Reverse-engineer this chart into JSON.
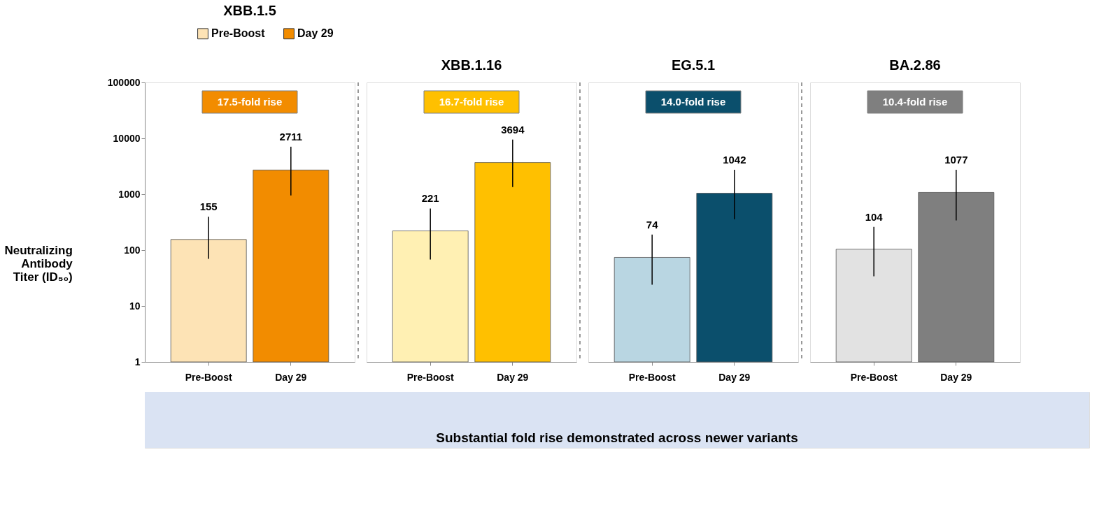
{
  "chart_data": [
    {
      "type": "bar",
      "title": "XBB.1.5",
      "ylabel": "Neutralizing Antibody Titer (ID₅₀)",
      "categories": [
        "Pre-Boost",
        "Day 29"
      ],
      "series": [
        {
          "name": "Pre-Boost",
          "color": "#fde3b5",
          "values": [
            155,
            null
          ],
          "errors": [
            [
              70,
              395
            ],
            null
          ]
        },
        {
          "name": "Day 29",
          "color": "#f28c00",
          "values": [
            null,
            2711
          ],
          "errors": [
            null,
            [
              950,
              7100
            ]
          ]
        }
      ],
      "annotations": [
        "17.5-fold rise"
      ],
      "log": true,
      "ylim": [
        1,
        100000
      ],
      "yticks": [
        1,
        10,
        100,
        1000,
        10000,
        100000
      ],
      "data_labels": true,
      "legend": "top",
      "grid": false
    },
    {
      "type": "bar",
      "title": "XBB.1.16",
      "categories": [
        "Pre-Boost",
        "Day 29"
      ],
      "series": [
        {
          "color": "#fff0b3",
          "values": [
            221,
            null
          ],
          "errors": [
            [
              68,
              555
            ],
            null
          ]
        },
        {
          "color": "#ffc000",
          "values": [
            null,
            3694
          ],
          "errors": [
            null,
            [
              1340,
              9500
            ]
          ]
        }
      ],
      "annotations": [
        "16.7-fold rise"
      ],
      "log": true,
      "ylim": [
        1,
        100000
      ],
      "tick_labels": "x",
      "data_labels": true,
      "grid": false
    },
    {
      "type": "bar",
      "title": "EG.5.1",
      "categories": [
        "Pre-Boost",
        "Day 29"
      ],
      "series": [
        {
          "color": "#b9d6e2",
          "values": [
            74,
            null
          ],
          "errors": [
            [
              24,
              190
            ],
            null
          ]
        },
        {
          "color": "#0b4f6c",
          "values": [
            null,
            1042
          ],
          "errors": [
            null,
            [
              357,
              2730
            ]
          ]
        }
      ],
      "annotations": [
        "14.0-fold rise"
      ],
      "log": true,
      "ylim": [
        1,
        100000
      ],
      "tick_labels": "x",
      "data_labels": true,
      "grid": false
    },
    {
      "type": "bar",
      "title": "BA.2.86",
      "categories": [
        "Pre-Boost",
        "Day 29"
      ],
      "series": [
        {
          "color": "#e2e2e2",
          "values": [
            104,
            null
          ],
          "errors": [
            [
              34,
              260
            ],
            null
          ]
        },
        {
          "color": "#7f7f7f",
          "values": [
            null,
            1077
          ],
          "errors": [
            null,
            [
              340,
              2730
            ]
          ]
        }
      ],
      "annotations": [
        "10.4-fold rise"
      ],
      "log": true,
      "ylim": [
        1,
        100000
      ],
      "tick_labels": "x",
      "data_labels": true,
      "grid": false
    },
    {
      "type": "other",
      "annotations": [
        "Substantial fold rise demonstrated across newer variants"
      ]
    }
  ]
}
